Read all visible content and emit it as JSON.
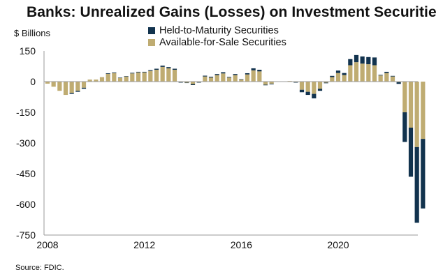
{
  "title": "Banks: Unrealized Gains (Losses) on Investment Securities",
  "source": "Source: FDIC.",
  "colors": {
    "htm": "#12334e",
    "afs": "#bfac72",
    "axis": "#999999"
  },
  "chart_data": {
    "type": "bar",
    "stacked": true,
    "title": "Banks: Unrealized Gains (Losses) on Investment Securities",
    "ylabel": "$ Billions",
    "xlabel": "",
    "ylim": [
      -750,
      150
    ],
    "yticks": [
      150,
      0,
      -150,
      -300,
      -450,
      -600,
      -750
    ],
    "xlim": [
      2008,
      2023
    ],
    "xticks": [
      2008,
      2012,
      2016,
      2020
    ],
    "legend_position": "top",
    "series": [
      {
        "name": "Held-to-Maturity Securities",
        "key": "htm"
      },
      {
        "name": "Available-for-Sale Securities",
        "key": "afs"
      }
    ],
    "quarters": [
      {
        "t": 2008.0,
        "afs": -10,
        "htm": 0
      },
      {
        "t": 2008.25,
        "afs": -25,
        "htm": 0
      },
      {
        "t": 2008.5,
        "afs": -45,
        "htm": 0
      },
      {
        "t": 2008.75,
        "afs": -65,
        "htm": 0
      },
      {
        "t": 2009.0,
        "afs": -55,
        "htm": -5
      },
      {
        "t": 2009.25,
        "afs": -45,
        "htm": -5
      },
      {
        "t": 2009.5,
        "afs": -30,
        "htm": -5
      },
      {
        "t": 2009.75,
        "afs": 10,
        "htm": 0
      },
      {
        "t": 2010.0,
        "afs": 10,
        "htm": 0
      },
      {
        "t": 2010.25,
        "afs": 22,
        "htm": 0
      },
      {
        "t": 2010.5,
        "afs": 38,
        "htm": 3
      },
      {
        "t": 2010.75,
        "afs": 42,
        "htm": 3
      },
      {
        "t": 2011.0,
        "afs": 18,
        "htm": 2
      },
      {
        "t": 2011.25,
        "afs": 25,
        "htm": 2
      },
      {
        "t": 2011.5,
        "afs": 40,
        "htm": 3
      },
      {
        "t": 2011.75,
        "afs": 45,
        "htm": 3
      },
      {
        "t": 2012.0,
        "afs": 45,
        "htm": 3
      },
      {
        "t": 2012.25,
        "afs": 52,
        "htm": 4
      },
      {
        "t": 2012.5,
        "afs": 58,
        "htm": 5
      },
      {
        "t": 2012.75,
        "afs": 72,
        "htm": 6
      },
      {
        "t": 2013.0,
        "afs": 65,
        "htm": 6
      },
      {
        "t": 2013.25,
        "afs": 58,
        "htm": 5
      },
      {
        "t": 2013.5,
        "afs": -3,
        "htm": -2
      },
      {
        "t": 2013.75,
        "afs": -5,
        "htm": -2
      },
      {
        "t": 2014.0,
        "afs": -12,
        "htm": -5
      },
      {
        "t": 2014.25,
        "afs": -3,
        "htm": -1
      },
      {
        "t": 2014.5,
        "afs": 25,
        "htm": 4
      },
      {
        "t": 2014.75,
        "afs": 20,
        "htm": 4
      },
      {
        "t": 2015.0,
        "afs": 32,
        "htm": 5
      },
      {
        "t": 2015.25,
        "afs": 40,
        "htm": 6
      },
      {
        "t": 2015.5,
        "afs": 20,
        "htm": 3
      },
      {
        "t": 2015.75,
        "afs": 32,
        "htm": 5
      },
      {
        "t": 2016.0,
        "afs": 10,
        "htm": 2
      },
      {
        "t": 2016.25,
        "afs": 35,
        "htm": 6
      },
      {
        "t": 2016.5,
        "afs": 55,
        "htm": 10
      },
      {
        "t": 2016.75,
        "afs": 50,
        "htm": 8
      },
      {
        "t": 2017.0,
        "afs": -15,
        "htm": -3
      },
      {
        "t": 2017.25,
        "afs": -10,
        "htm": -3
      },
      {
        "t": 2017.5,
        "afs": 0,
        "htm": 0
      },
      {
        "t": 2017.75,
        "afs": 0,
        "htm": 0
      },
      {
        "t": 2018.0,
        "afs": 3,
        "htm": 0
      },
      {
        "t": 2018.25,
        "afs": -3,
        "htm": -2
      },
      {
        "t": 2018.5,
        "afs": -40,
        "htm": -12
      },
      {
        "t": 2018.75,
        "afs": -50,
        "htm": -15
      },
      {
        "t": 2019.0,
        "afs": -60,
        "htm": -22
      },
      {
        "t": 2019.25,
        "afs": -35,
        "htm": -10
      },
      {
        "t": 2019.5,
        "afs": -5,
        "htm": -3
      },
      {
        "t": 2019.75,
        "afs": 22,
        "htm": 6
      },
      {
        "t": 2020.0,
        "afs": 42,
        "htm": 12
      },
      {
        "t": 2020.25,
        "afs": 32,
        "htm": 10
      },
      {
        "t": 2020.5,
        "afs": 80,
        "htm": 30
      },
      {
        "t": 2020.75,
        "afs": 95,
        "htm": 35
      },
      {
        "t": 2021.0,
        "afs": 88,
        "htm": 35
      },
      {
        "t": 2021.25,
        "afs": 85,
        "htm": 35
      },
      {
        "t": 2021.5,
        "afs": 80,
        "htm": 38
      },
      {
        "t": 2021.75,
        "afs": 30,
        "htm": 3
      },
      {
        "t": 2022.0,
        "afs": 42,
        "htm": 6
      },
      {
        "t": 2022.25,
        "afs": 25,
        "htm": 3
      },
      {
        "t": 2022.5,
        "afs": -3,
        "htm": -8
      },
      {
        "t": 2022.75,
        "afs": -150,
        "htm": -145
      },
      {
        "t": 2023.0,
        "afs": -225,
        "htm": -240
      },
      {
        "t": 2023.25,
        "afs": -320,
        "htm": -370
      },
      {
        "t": 2023.5,
        "afs": -280,
        "htm": -340
      }
    ]
  }
}
